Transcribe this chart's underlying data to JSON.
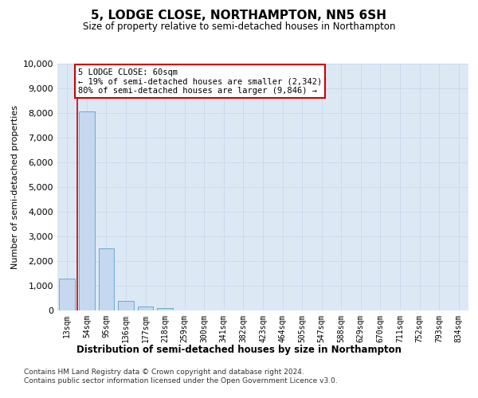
{
  "title": "5, LODGE CLOSE, NORTHAMPTON, NN5 6SH",
  "subtitle": "Size of property relative to semi-detached houses in Northampton",
  "xlabel_bottom": "Distribution of semi-detached houses by size in Northampton",
  "ylabel": "Number of semi-detached properties",
  "footnote1": "Contains HM Land Registry data © Crown copyright and database right 2024.",
  "footnote2": "Contains public sector information licensed under the Open Government Licence v3.0.",
  "categories": [
    "13sqm",
    "54sqm",
    "95sqm",
    "136sqm",
    "177sqm",
    "218sqm",
    "259sqm",
    "300sqm",
    "341sqm",
    "382sqm",
    "423sqm",
    "464sqm",
    "505sqm",
    "547sqm",
    "588sqm",
    "629sqm",
    "670sqm",
    "711sqm",
    "752sqm",
    "793sqm",
    "834sqm"
  ],
  "bar_values": [
    1300,
    8050,
    2520,
    400,
    160,
    100,
    0,
    0,
    0,
    0,
    0,
    0,
    0,
    0,
    0,
    0,
    0,
    0,
    0,
    0,
    0
  ],
  "bar_color": "#c5d8ef",
  "bar_edge_color": "#6aaad4",
  "ylim": [
    0,
    10000
  ],
  "yticks": [
    0,
    1000,
    2000,
    3000,
    4000,
    5000,
    6000,
    7000,
    8000,
    9000,
    10000
  ],
  "property_line_x": 0.5,
  "property_line_color": "#cc0000",
  "annotation_title": "5 LODGE CLOSE: 60sqm",
  "annotation_line1": "← 19% of semi-detached houses are smaller (2,342)",
  "annotation_line2": "80% of semi-detached houses are larger (9,846) →",
  "annotation_box_color": "#ffffff",
  "annotation_box_edge_color": "#cc0000",
  "grid_color": "#c8d8ec",
  "background_color": "#dce9f5"
}
